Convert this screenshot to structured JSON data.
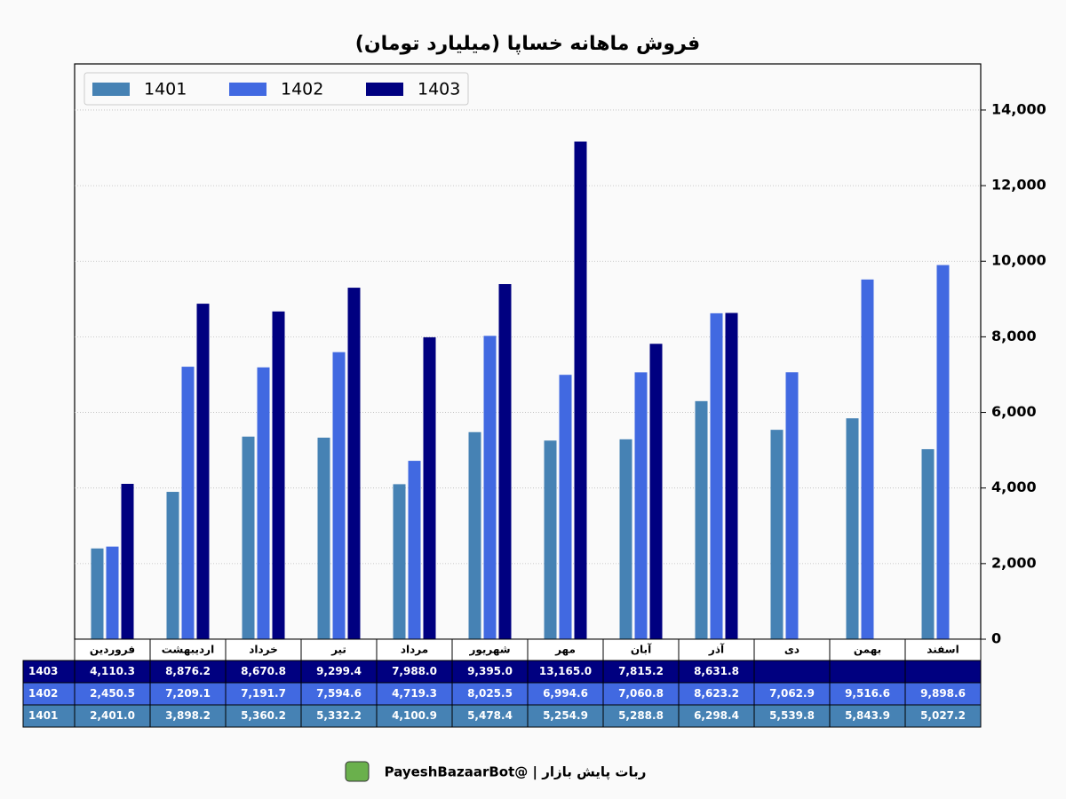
{
  "chart_data": {
    "type": "bar",
    "title": "فروش ماهانه خساپا (میلیارد تومان)",
    "categories": [
      "فروردین",
      "اردیبهشت",
      "خرداد",
      "تیر",
      "مرداد",
      "شهریور",
      "مهر",
      "آبان",
      "آذر",
      "دی",
      "بهمن",
      "اسفند"
    ],
    "series": [
      {
        "name": "1401",
        "color": "#4682b4",
        "values": [
          2401.0,
          3898.2,
          5360.2,
          5332.2,
          4100.9,
          5478.4,
          5254.9,
          5288.8,
          6298.4,
          5539.8,
          5843.9,
          5027.2
        ],
        "value_labels": [
          "2,401.0",
          "3,898.2",
          "5,360.2",
          "5,332.2",
          "4,100.9",
          "5,478.4",
          "5,254.9",
          "5,288.8",
          "6,298.4",
          "5,539.8",
          "5,843.9",
          "5,027.2"
        ]
      },
      {
        "name": "1402",
        "color": "#4169e1",
        "values": [
          2450.5,
          7209.1,
          7191.7,
          7594.6,
          4719.3,
          8025.5,
          6994.6,
          7060.8,
          8623.2,
          7062.9,
          9516.6,
          9898.6
        ],
        "value_labels": [
          "2,450.5",
          "7,209.1",
          "7,191.7",
          "7,594.6",
          "4,719.3",
          "8,025.5",
          "6,994.6",
          "7,060.8",
          "8,623.2",
          "7,062.9",
          "9,516.6",
          "9,898.6"
        ]
      },
      {
        "name": "1403",
        "color": "#000080",
        "values": [
          4110.3,
          8876.2,
          8670.8,
          9299.4,
          7988.0,
          9395.0,
          13165.0,
          7815.2,
          8631.8,
          null,
          null,
          null
        ],
        "value_labels": [
          "4,110.3",
          "8,876.2",
          "8,670.8",
          "9,299.4",
          "7,988.0",
          "9,395.0",
          "13,165.0",
          "7,815.2",
          "8,631.8",
          null,
          null,
          null
        ]
      }
    ],
    "ylim": [
      0,
      15220
    ],
    "yticks": [
      0,
      {
        "value": 2000,
        "label": "2,000"
      },
      {
        "value": 4000,
        "label": "4,000"
      },
      {
        "value": 6000,
        "label": "6,000"
      },
      {
        "value": 8000,
        "label": "8,000"
      },
      {
        "value": 10000,
        "label": "10,000"
      },
      {
        "value": 12000,
        "label": "12,000"
      },
      {
        "value": 14000,
        "label": "14,000"
      }
    ],
    "grid": true,
    "legend": "upper-left",
    "footer": "ربات پایش بازار  |  @PayeshBazaarBot"
  }
}
